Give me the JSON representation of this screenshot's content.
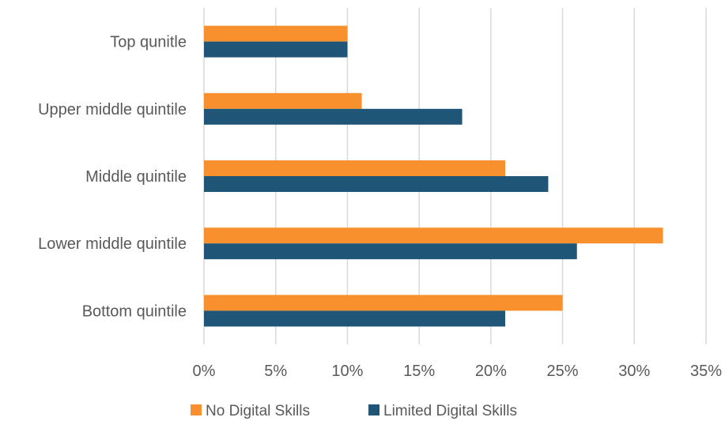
{
  "chart_data": {
    "type": "bar",
    "orientation": "horizontal",
    "categories": [
      "Top qunitle",
      "Upper middle quintile",
      "Middle quintile",
      "Lower middle quintile",
      "Bottom quintile"
    ],
    "series": [
      {
        "name": "No Digital Skills",
        "color": "#F7902D",
        "values": [
          10,
          11,
          21,
          32,
          25
        ]
      },
      {
        "name": "Limited Digital Skills",
        "color": "#1F5577",
        "values": [
          10,
          18,
          24,
          26,
          21
        ]
      }
    ],
    "xlim": [
      0,
      35
    ],
    "xticks": [
      0,
      5,
      10,
      15,
      20,
      25,
      30,
      35
    ],
    "xtick_labels": [
      "0%",
      "5%",
      "10%",
      "15%",
      "20%",
      "25%",
      "30%",
      "35%"
    ],
    "grid": true,
    "legend": "bottom"
  }
}
